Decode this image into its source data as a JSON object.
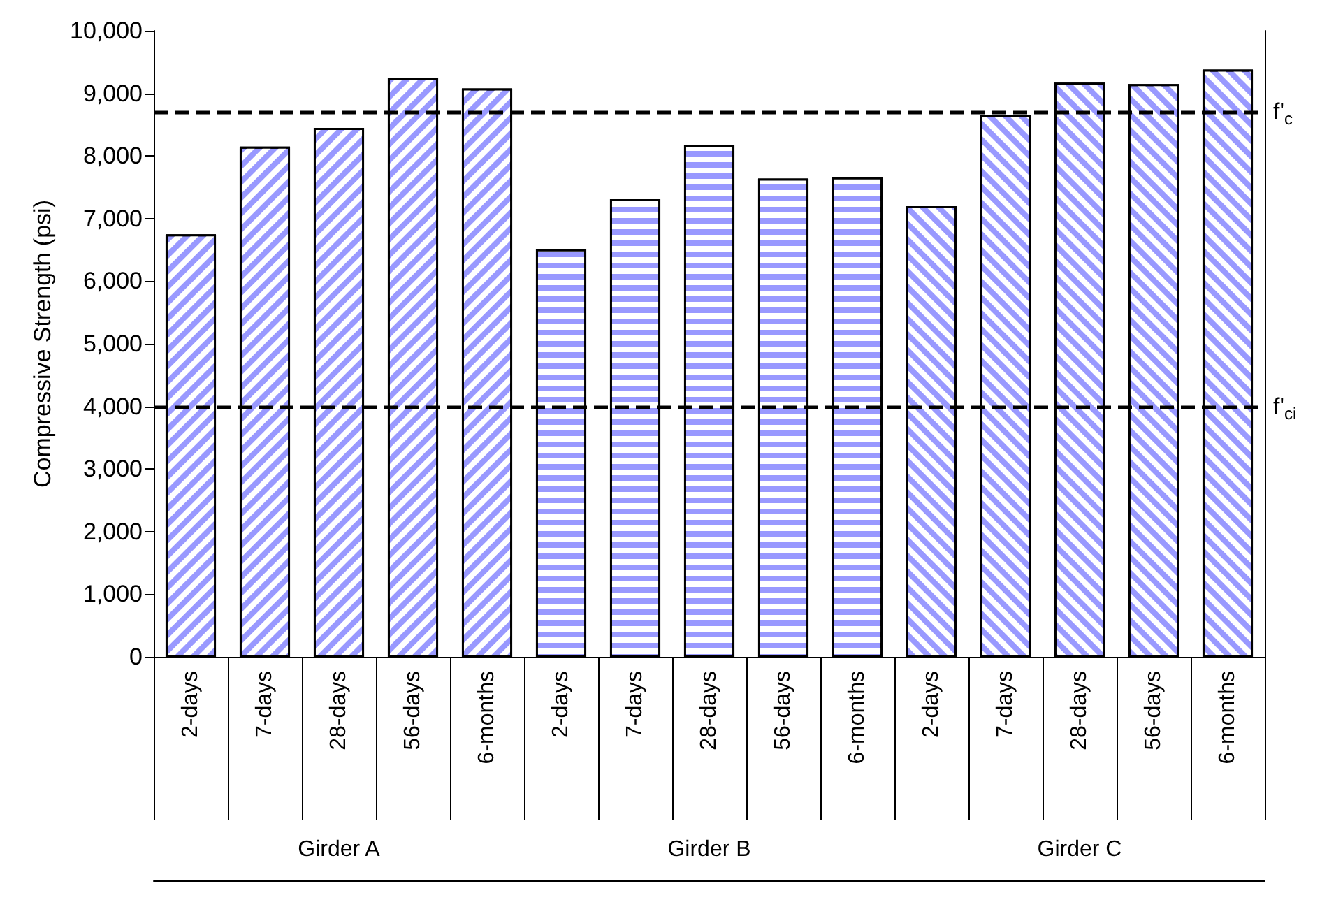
{
  "chart_data": {
    "type": "bar",
    "ylabel": "Compressive Strength (psi)",
    "categories": [
      "2-days",
      "7-days",
      "28-days",
      "56-days",
      "6-months",
      "2-days",
      "7-days",
      "28-days",
      "56-days",
      "6-months",
      "2-days",
      "7-days",
      "28-days",
      "56-days",
      "6-months"
    ],
    "series": [
      {
        "name": "Girder A",
        "color": "#9999ff",
        "values": [
          6750,
          8150,
          8450,
          9250,
          9080,
          null,
          null,
          null,
          null,
          null,
          null,
          null,
          null,
          null,
          null
        ]
      },
      {
        "name": "Girder B",
        "color": "#9999ff",
        "values": [
          null,
          null,
          null,
          null,
          null,
          6510,
          7310,
          8180,
          7640,
          7660,
          null,
          null,
          null,
          null,
          null
        ]
      },
      {
        "name": "Girder C",
        "color": "#9999ff",
        "values": [
          null,
          null,
          null,
          null,
          null,
          null,
          null,
          null,
          null,
          null,
          7200,
          8650,
          9170,
          9150,
          9380
        ]
      }
    ],
    "ylim": [
      0,
      10000
    ],
    "yticks": [
      0,
      {
        "value": 1000,
        "label": "1,000"
      },
      {
        "value": 2000,
        "label": "2,000"
      },
      {
        "value": 3000,
        "label": "3,000"
      },
      {
        "value": 4000,
        "label": "4,000"
      },
      {
        "value": 5000,
        "label": "5,000"
      },
      {
        "value": 6000,
        "label": "6,000"
      },
      {
        "value": 7000,
        "label": "7,000"
      },
      {
        "value": 8000,
        "label": "8,000"
      },
      {
        "value": 9000,
        "label": "9,000"
      },
      {
        "value": 10000,
        "label": "10,000"
      }
    ],
    "ref_lines": [
      {
        "axis": "y",
        "value": 8700,
        "label": "f'$_{c}$",
        "line_style": "dashed",
        "color": "#000000"
      },
      {
        "axis": "y",
        "value": 4000,
        "label": "f'$_{ci}$",
        "line_style": "dashed",
        "color": "#000000"
      }
    ],
    "grid": false,
    "legend": false
  }
}
